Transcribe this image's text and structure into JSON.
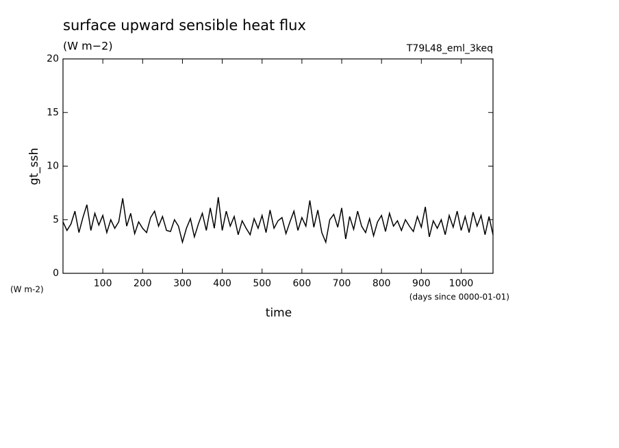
{
  "chart_data": {
    "type": "line",
    "title": "surface upward sensible heat flux",
    "subtitle": "(W m−2)",
    "annotation": "T79L48_eml_3keq",
    "ylabel": "gt_ssh",
    "xlabel": "time",
    "yunits": "(W m-2)",
    "xunits": "(days since 0000-01-01)",
    "xlim": [
      0,
      1080
    ],
    "ylim": [
      0,
      20
    ],
    "xticks": [
      100,
      200,
      300,
      400,
      500,
      600,
      700,
      800,
      900,
      1000
    ],
    "yticks": [
      0,
      5,
      10,
      15,
      20
    ],
    "x": [
      0,
      10,
      20,
      30,
      40,
      50,
      60,
      70,
      80,
      90,
      100,
      110,
      120,
      130,
      140,
      150,
      160,
      170,
      180,
      190,
      200,
      210,
      220,
      230,
      240,
      250,
      260,
      270,
      280,
      290,
      300,
      310,
      320,
      330,
      340,
      350,
      360,
      370,
      380,
      390,
      400,
      410,
      420,
      430,
      440,
      450,
      460,
      470,
      480,
      490,
      500,
      510,
      520,
      530,
      540,
      550,
      560,
      570,
      580,
      590,
      600,
      610,
      620,
      630,
      640,
      650,
      660,
      670,
      680,
      690,
      700,
      710,
      720,
      730,
      740,
      750,
      760,
      770,
      780,
      790,
      800,
      810,
      820,
      830,
      840,
      850,
      860,
      870,
      880,
      890,
      900,
      910,
      920,
      930,
      940,
      950,
      960,
      970,
      980,
      990,
      1000,
      1010,
      1020,
      1030,
      1040,
      1050,
      1060,
      1070,
      1080
    ],
    "series": [
      {
        "color": "#000000",
        "values": [
          4.8,
          4.0,
          4.6,
          5.8,
          3.8,
          5.2,
          6.4,
          4.0,
          5.6,
          4.5,
          5.4,
          3.8,
          5.0,
          4.2,
          4.8,
          7.0,
          4.4,
          5.6,
          3.7,
          4.8,
          4.2,
          3.8,
          5.2,
          5.8,
          4.4,
          5.3,
          4.0,
          3.9,
          5.0,
          4.4,
          2.9,
          4.2,
          5.1,
          3.4,
          4.6,
          5.6,
          4.0,
          6.1,
          4.2,
          7.1,
          4.0,
          5.8,
          4.4,
          5.3,
          3.6,
          4.9,
          4.2,
          3.6,
          5.1,
          4.2,
          5.4,
          3.8,
          5.9,
          4.2,
          4.9,
          5.2,
          3.7,
          4.8,
          5.8,
          4.0,
          5.2,
          4.4,
          6.8,
          4.3,
          5.9,
          3.8,
          2.9,
          5.0,
          5.5,
          4.3,
          6.1,
          3.2,
          5.3,
          4.1,
          5.8,
          4.4,
          3.8,
          5.1,
          3.5,
          4.8,
          5.4,
          3.9,
          5.6,
          4.4,
          4.9,
          4.0,
          5.0,
          4.4,
          3.9,
          5.3,
          4.3,
          6.2,
          3.4,
          4.9,
          4.2,
          5.0,
          3.6,
          5.4,
          4.3,
          5.8,
          4.0,
          5.3,
          3.8,
          5.7,
          4.4,
          5.4,
          3.6,
          5.3,
          3.6
        ]
      }
    ]
  }
}
